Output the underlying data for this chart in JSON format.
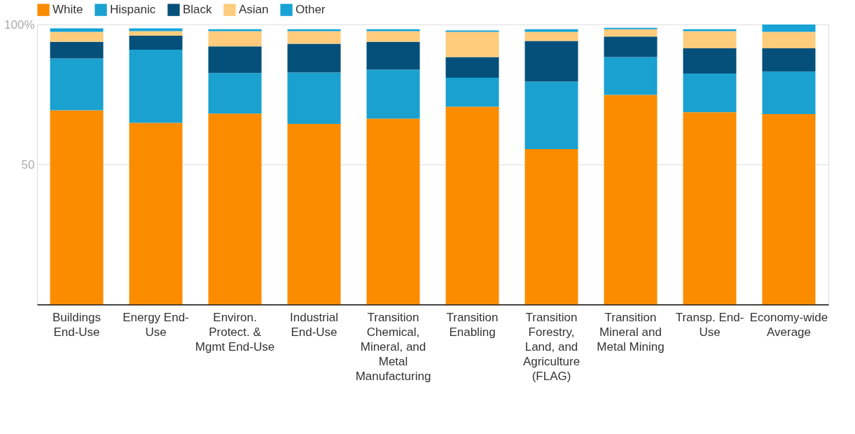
{
  "chart_data": {
    "type": "bar",
    "stacked": true,
    "categories": [
      "Buildings End-Use",
      "Energy End-Use",
      "Environ. Protect. & Mgmt End-Use",
      "Industrial End-Use",
      "Transition Chemical, Mineral, and Metal Manufacturing",
      "Transition Enabling",
      "Transition Forestry, Land, and Agriculture (FLAG)",
      "Transition Mineral and Metal Mining",
      "Transp. End-Use",
      "Economy-wide Average"
    ],
    "series": [
      {
        "name": "White",
        "color": "#fb8c00",
        "values": [
          69.4,
          64.9,
          68.2,
          64.5,
          66.4,
          70.6,
          55.5,
          74.9,
          68.7,
          68.0
        ]
      },
      {
        "name": "Hispanic",
        "color": "#1aa1d0",
        "values": [
          18.5,
          26.1,
          14.5,
          18.4,
          17.5,
          10.4,
          24.1,
          13.5,
          13.8,
          15.2
        ]
      },
      {
        "name": "Black",
        "color": "#04507a",
        "values": [
          5.9,
          5.0,
          9.5,
          10.2,
          9.9,
          7.4,
          14.5,
          7.3,
          9.0,
          8.3
        ]
      },
      {
        "name": "Asian",
        "color": "#fecc7c",
        "values": [
          3.6,
          1.6,
          5.4,
          4.5,
          3.8,
          9.0,
          3.3,
          2.6,
          6.1,
          5.9
        ]
      },
      {
        "name": "Other",
        "color": "#17a3d6",
        "values": [
          1.2,
          1.0,
          0.7,
          0.7,
          0.7,
          0.5,
          0.9,
          0.5,
          0.7,
          2.6
        ]
      }
    ],
    "ylim": [
      0,
      100
    ],
    "yticks": [
      {
        "value": 50,
        "label": "50"
      },
      {
        "value": 100,
        "label": "100%"
      }
    ],
    "grid": "y",
    "legend": "top"
  }
}
